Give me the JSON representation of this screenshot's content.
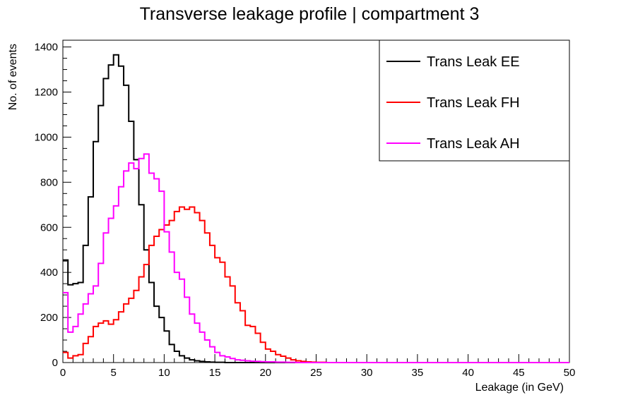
{
  "chart_data": {
    "type": "line",
    "step": true,
    "title": "Transverse leakage profile | compartment 3",
    "xlabel": "Leakage (in GeV)",
    "ylabel": "No. of events",
    "xlim": [
      0,
      50
    ],
    "ylim": [
      0,
      1430
    ],
    "bin_width": 0.5,
    "x_ticks": [
      0,
      5,
      10,
      15,
      20,
      25,
      30,
      35,
      40,
      45,
      50
    ],
    "y_ticks": [
      0,
      200,
      400,
      600,
      800,
      1000,
      1200,
      1400
    ],
    "grid": false,
    "legend_position": "top-right",
    "series": [
      {
        "name": "Trans Leak EE",
        "color": "#000000",
        "values": [
          455,
          345,
          350,
          355,
          520,
          735,
          980,
          1140,
          1260,
          1320,
          1365,
          1315,
          1230,
          1070,
          900,
          700,
          500,
          355,
          250,
          200,
          140,
          80,
          50,
          30,
          20,
          12,
          8,
          5,
          3,
          2,
          1,
          1,
          0,
          0,
          0,
          0,
          0,
          0,
          0,
          0
        ]
      },
      {
        "name": "Trans Leak FH",
        "color": "#ff0000",
        "values": [
          45,
          20,
          30,
          35,
          85,
          115,
          160,
          175,
          185,
          170,
          190,
          225,
          260,
          285,
          320,
          380,
          435,
          520,
          560,
          590,
          610,
          630,
          670,
          690,
          680,
          690,
          665,
          630,
          575,
          520,
          465,
          445,
          380,
          340,
          265,
          230,
          165,
          160,
          130,
          90,
          60,
          50,
          35,
          28,
          20,
          12,
          8,
          5,
          3,
          2,
          1,
          1,
          0
        ]
      },
      {
        "name": "Trans Leak AH",
        "color": "#ff00ff",
        "values": [
          310,
          135,
          160,
          215,
          260,
          305,
          340,
          440,
          575,
          640,
          695,
          780,
          850,
          885,
          860,
          905,
          925,
          840,
          815,
          760,
          580,
          490,
          400,
          370,
          290,
          215,
          175,
          135,
          100,
          70,
          45,
          30,
          25,
          18,
          12,
          10,
          8,
          6,
          5,
          4,
          3,
          3,
          2,
          2,
          1,
          1,
          0
        ]
      }
    ]
  }
}
